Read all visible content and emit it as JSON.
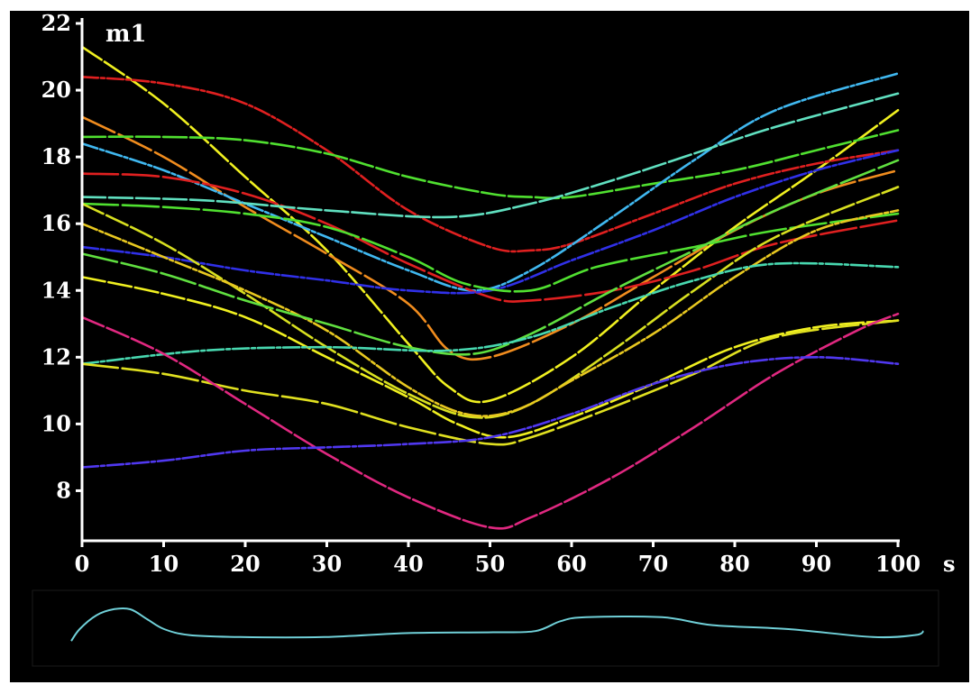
{
  "chart_data": [
    {
      "type": "line",
      "panel_label": "m1",
      "xlabel": "s",
      "ylabel": "",
      "xlim": [
        0,
        100
      ],
      "ylim": [
        6.5,
        22
      ],
      "x_ticks": [
        0,
        10,
        20,
        30,
        40,
        50,
        60,
        70,
        80,
        90,
        100
      ],
      "y_ticks": [
        8,
        10,
        12,
        14,
        16,
        18,
        20,
        22
      ],
      "grid": false,
      "legend": "none",
      "background": "#000000",
      "axis_color": "#ffffff",
      "series": [
        {
          "color": "#f0f020",
          "points": [
            [
              0,
              21.3
            ],
            [
              10,
              19.6
            ],
            [
              20,
              17.4
            ],
            [
              30,
              15.2
            ],
            [
              40,
              12.4
            ],
            [
              45,
              11.1
            ],
            [
              50,
              10.7
            ],
            [
              60,
              12.0
            ],
            [
              70,
              14.0
            ],
            [
              80,
              15.9
            ],
            [
              90,
              17.6
            ],
            [
              100,
              19.4
            ]
          ]
        },
        {
          "color": "#e02020",
          "points": [
            [
              0,
              20.4
            ],
            [
              10,
              20.2
            ],
            [
              20,
              19.6
            ],
            [
              30,
              18.2
            ],
            [
              40,
              16.4
            ],
            [
              50,
              15.3
            ],
            [
              55,
              15.2
            ],
            [
              60,
              15.4
            ],
            [
              70,
              16.3
            ],
            [
              80,
              17.2
            ],
            [
              90,
              17.8
            ],
            [
              100,
              18.2
            ]
          ]
        },
        {
          "color": "#f08c1e",
          "points": [
            [
              0,
              19.2
            ],
            [
              10,
              18.0
            ],
            [
              20,
              16.5
            ],
            [
              30,
              15.1
            ],
            [
              40,
              13.6
            ],
            [
              45,
              12.2
            ],
            [
              50,
              12.0
            ],
            [
              60,
              13.0
            ],
            [
              70,
              14.4
            ],
            [
              80,
              15.8
            ],
            [
              90,
              16.9
            ],
            [
              100,
              17.6
            ]
          ]
        },
        {
          "color": "#50e030",
          "points": [
            [
              0,
              18.6
            ],
            [
              10,
              18.6
            ],
            [
              20,
              18.5
            ],
            [
              30,
              18.1
            ],
            [
              40,
              17.4
            ],
            [
              50,
              16.9
            ],
            [
              55,
              16.8
            ],
            [
              60,
              16.8
            ],
            [
              70,
              17.2
            ],
            [
              80,
              17.6
            ],
            [
              90,
              18.2
            ],
            [
              100,
              18.8
            ]
          ]
        },
        {
          "color": "#40b8f0",
          "points": [
            [
              0,
              18.4
            ],
            [
              10,
              17.6
            ],
            [
              20,
              16.6
            ],
            [
              30,
              15.6
            ],
            [
              40,
              14.6
            ],
            [
              48,
              14.0
            ],
            [
              55,
              14.6
            ],
            [
              65,
              16.2
            ],
            [
              75,
              17.9
            ],
            [
              85,
              19.4
            ],
            [
              100,
              20.5
            ]
          ]
        },
        {
          "color": "#e02020",
          "points": [
            [
              0,
              17.5
            ],
            [
              10,
              17.4
            ],
            [
              20,
              16.9
            ],
            [
              30,
              16.0
            ],
            [
              40,
              14.8
            ],
            [
              50,
              13.8
            ],
            [
              55,
              13.7
            ],
            [
              65,
              14.0
            ],
            [
              75,
              14.6
            ],
            [
              85,
              15.4
            ],
            [
              100,
              16.1
            ]
          ]
        },
        {
          "color": "#60e0c0",
          "points": [
            [
              0,
              16.8
            ],
            [
              15,
              16.7
            ],
            [
              30,
              16.4
            ],
            [
              45,
              16.2
            ],
            [
              55,
              16.6
            ],
            [
              65,
              17.3
            ],
            [
              75,
              18.1
            ],
            [
              85,
              18.9
            ],
            [
              100,
              19.9
            ]
          ]
        },
        {
          "color": "#3030e8",
          "points": [
            [
              0,
              15.3
            ],
            [
              10,
              15.0
            ],
            [
              20,
              14.6
            ],
            [
              30,
              14.3
            ],
            [
              40,
              14.0
            ],
            [
              50,
              14.0
            ],
            [
              60,
              14.9
            ],
            [
              70,
              15.8
            ],
            [
              80,
              16.8
            ],
            [
              90,
              17.6
            ],
            [
              100,
              18.2
            ]
          ]
        },
        {
          "color": "#50e030",
          "points": [
            [
              0,
              16.6
            ],
            [
              10,
              16.5
            ],
            [
              20,
              16.3
            ],
            [
              30,
              15.9
            ],
            [
              40,
              15.0
            ],
            [
              47,
              14.2
            ],
            [
              55,
              14.0
            ],
            [
              63,
              14.7
            ],
            [
              75,
              15.3
            ],
            [
              85,
              15.8
            ],
            [
              100,
              16.3
            ]
          ]
        },
        {
          "color": "#d8e020",
          "points": [
            [
              0,
              16.6
            ],
            [
              10,
              15.4
            ],
            [
              20,
              13.9
            ],
            [
              30,
              12.3
            ],
            [
              40,
              10.9
            ],
            [
              48,
              10.2
            ],
            [
              55,
              10.6
            ],
            [
              65,
              12.2
            ],
            [
              75,
              14.0
            ],
            [
              85,
              15.6
            ],
            [
              100,
              17.1
            ]
          ]
        },
        {
          "color": "#e8c820",
          "points": [
            [
              0,
              16.0
            ],
            [
              10,
              15.0
            ],
            [
              20,
              14.0
            ],
            [
              30,
              12.8
            ],
            [
              40,
              11.1
            ],
            [
              47,
              10.3
            ],
            [
              53,
              10.4
            ],
            [
              60,
              11.3
            ],
            [
              70,
              12.7
            ],
            [
              80,
              14.4
            ],
            [
              90,
              15.8
            ],
            [
              100,
              16.4
            ]
          ]
        },
        {
          "color": "#60e040",
          "points": [
            [
              0,
              15.1
            ],
            [
              10,
              14.5
            ],
            [
              20,
              13.7
            ],
            [
              30,
              13.0
            ],
            [
              40,
              12.3
            ],
            [
              48,
              12.1
            ],
            [
              55,
              12.7
            ],
            [
              65,
              14.0
            ],
            [
              75,
              15.2
            ],
            [
              85,
              16.4
            ],
            [
              100,
              17.9
            ]
          ]
        },
        {
          "color": "#f0f020",
          "points": [
            [
              0,
              14.4
            ],
            [
              10,
              13.9
            ],
            [
              20,
              13.2
            ],
            [
              30,
              12.0
            ],
            [
              40,
              10.8
            ],
            [
              46,
              10.0
            ],
            [
              52,
              9.6
            ],
            [
              60,
              10.2
            ],
            [
              70,
              11.2
            ],
            [
              80,
              12.3
            ],
            [
              90,
              12.9
            ],
            [
              100,
              13.1
            ]
          ]
        },
        {
          "color": "#48d8b0",
          "points": [
            [
              0,
              11.8
            ],
            [
              15,
              12.2
            ],
            [
              30,
              12.3
            ],
            [
              45,
              12.2
            ],
            [
              55,
              12.6
            ],
            [
              65,
              13.5
            ],
            [
              75,
              14.3
            ],
            [
              85,
              14.8
            ],
            [
              100,
              14.7
            ]
          ]
        },
        {
          "color": "#e0e020",
          "points": [
            [
              0,
              11.8
            ],
            [
              10,
              11.5
            ],
            [
              20,
              11.0
            ],
            [
              30,
              10.6
            ],
            [
              40,
              9.9
            ],
            [
              50,
              9.4
            ],
            [
              55,
              9.6
            ],
            [
              65,
              10.5
            ],
            [
              75,
              11.5
            ],
            [
              85,
              12.6
            ],
            [
              100,
              13.1
            ]
          ]
        },
        {
          "color": "#e02880",
          "points": [
            [
              0,
              13.2
            ],
            [
              10,
              12.1
            ],
            [
              20,
              10.6
            ],
            [
              30,
              9.1
            ],
            [
              40,
              7.8
            ],
            [
              50,
              6.9
            ],
            [
              55,
              7.2
            ],
            [
              65,
              8.4
            ],
            [
              75,
              9.9
            ],
            [
              85,
              11.5
            ],
            [
              95,
              12.8
            ],
            [
              100,
              13.3
            ]
          ]
        },
        {
          "color": "#5038f0",
          "points": [
            [
              0,
              8.7
            ],
            [
              10,
              8.9
            ],
            [
              20,
              9.2
            ],
            [
              30,
              9.3
            ],
            [
              40,
              9.4
            ],
            [
              50,
              9.6
            ],
            [
              60,
              10.3
            ],
            [
              70,
              11.2
            ],
            [
              80,
              11.8
            ],
            [
              90,
              12.0
            ],
            [
              100,
              11.8
            ]
          ]
        }
      ]
    },
    {
      "type": "line",
      "panel_label": "",
      "xlabel": "",
      "ylabel": "",
      "xlim": [
        0,
        100
      ],
      "ylim": [
        0,
        1
      ],
      "grid": false,
      "legend": "none",
      "series": [
        {
          "color": "#70d0d8",
          "points": [
            [
              0,
              0.2
            ],
            [
              1,
              0.5
            ],
            [
              3,
              0.85
            ],
            [
              5,
              1.0
            ],
            [
              7,
              1.0
            ],
            [
              9,
              0.75
            ],
            [
              11,
              0.5
            ],
            [
              14,
              0.35
            ],
            [
              20,
              0.3
            ],
            [
              30,
              0.3
            ],
            [
              40,
              0.4
            ],
            [
              50,
              0.42
            ],
            [
              55,
              0.45
            ],
            [
              58,
              0.7
            ],
            [
              61,
              0.8
            ],
            [
              70,
              0.8
            ],
            [
              76,
              0.6
            ],
            [
              85,
              0.5
            ],
            [
              95,
              0.3
            ],
            [
              100,
              0.35
            ],
            [
              101,
              0.45
            ]
          ]
        }
      ]
    }
  ]
}
